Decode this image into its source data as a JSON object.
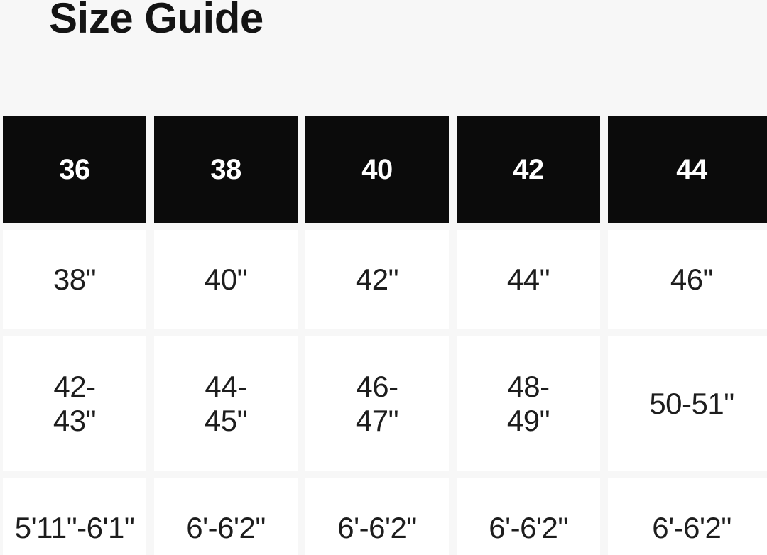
{
  "title": "Size Guide",
  "colors": {
    "page_bg": "#f7f7f7",
    "title_text": "#141414",
    "header_bg": "#0b0b0b",
    "header_text": "#ffffff",
    "cell_bg": "#ffffff",
    "cell_text": "#1d1d1d"
  },
  "size_table": {
    "header_row": [
      "36",
      "38",
      "40",
      "42",
      "44"
    ],
    "body_rows": [
      [
        "38\"",
        "40\"",
        "42\"",
        "44\"",
        "46\""
      ],
      [
        "42-\n43\"",
        "44-\n45\"",
        "46-\n47\"",
        "48-\n49\"",
        "50-51\""
      ],
      [
        "5'11\"-6'1\"",
        "6'-6'2\"",
        "6'-6'2\"",
        "6'-6'2\"",
        "6'-6'2\""
      ]
    ]
  }
}
